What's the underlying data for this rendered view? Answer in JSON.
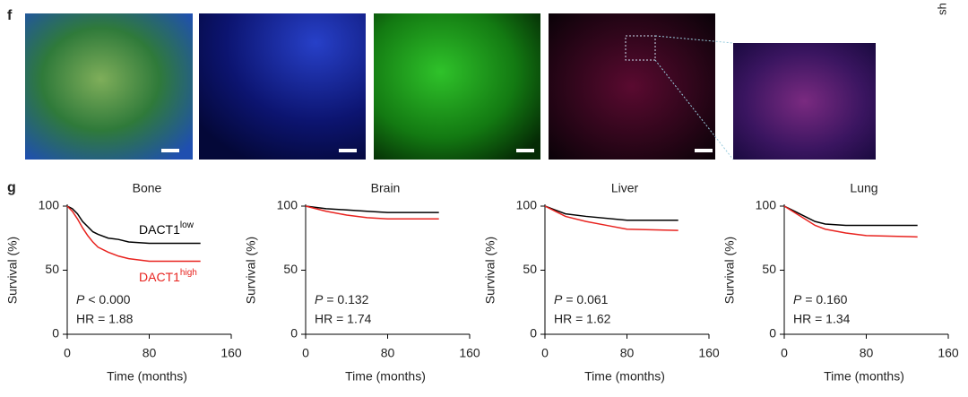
{
  "panel_labels": {
    "f": "f",
    "g": "g"
  },
  "corner_text": "sh",
  "chart_data": [
    {
      "type": "line",
      "title": "Bone",
      "xlabel": "Time (months)",
      "ylabel": "Survival (%)",
      "xlim": [
        0,
        160
      ],
      "ylim": [
        0,
        100
      ],
      "xticks": [
        0,
        80,
        160
      ],
      "yticks": [
        0,
        50,
        100
      ],
      "legend": true,
      "p_value": {
        "symbol": "P",
        "text": "< 0.000"
      },
      "hr": "HR = 1.88",
      "series": [
        {
          "name": "DACT1",
          "superscript": "low",
          "color": "#000000",
          "x": [
            0,
            5,
            10,
            15,
            20,
            25,
            30,
            40,
            50,
            60,
            80,
            130
          ],
          "values": [
            100,
            98,
            94,
            88,
            84,
            80,
            78,
            75,
            74,
            72,
            71,
            71
          ]
        },
        {
          "name": "DACT1",
          "superscript": "high",
          "color": "#e8231f",
          "x": [
            0,
            5,
            10,
            15,
            20,
            25,
            30,
            40,
            50,
            60,
            80,
            130
          ],
          "values": [
            100,
            96,
            90,
            83,
            77,
            72,
            68,
            64,
            61,
            59,
            57,
            57
          ]
        }
      ]
    },
    {
      "type": "line",
      "title": "Brain",
      "xlabel": "Time (months)",
      "ylabel": "Survival (%)",
      "xlim": [
        0,
        160
      ],
      "ylim": [
        0,
        100
      ],
      "xticks": [
        0,
        80,
        160
      ],
      "yticks": [
        0,
        50,
        100
      ],
      "legend": false,
      "p_value": {
        "symbol": "P",
        "text": "= 0.132"
      },
      "hr": "HR = 1.74",
      "series": [
        {
          "color": "#000000",
          "x": [
            0,
            20,
            40,
            60,
            80,
            130
          ],
          "values": [
            100,
            98,
            97,
            96,
            95,
            95
          ]
        },
        {
          "color": "#e8231f",
          "x": [
            0,
            20,
            40,
            60,
            80,
            130
          ],
          "values": [
            100,
            96,
            93,
            91,
            90,
            90
          ]
        }
      ]
    },
    {
      "type": "line",
      "title": "Liver",
      "xlabel": "Time (months)",
      "ylabel": "Survival (%)",
      "xlim": [
        0,
        160
      ],
      "ylim": [
        0,
        100
      ],
      "xticks": [
        0,
        80,
        160
      ],
      "yticks": [
        0,
        50,
        100
      ],
      "legend": false,
      "p_value": {
        "symbol": "P",
        "text": "= 0.061"
      },
      "hr": "HR = 1.62",
      "series": [
        {
          "color": "#000000",
          "x": [
            0,
            10,
            20,
            40,
            80,
            130
          ],
          "values": [
            100,
            97,
            94,
            92,
            89,
            89
          ]
        },
        {
          "color": "#e8231f",
          "x": [
            0,
            10,
            20,
            40,
            60,
            80,
            130
          ],
          "values": [
            100,
            96,
            92,
            88,
            85,
            82,
            81
          ]
        }
      ]
    },
    {
      "type": "line",
      "title": "Lung",
      "xlabel": "Time (months)",
      "ylabel": "Survival (%)",
      "xlim": [
        0,
        160
      ],
      "ylim": [
        0,
        100
      ],
      "xticks": [
        0,
        80,
        160
      ],
      "yticks": [
        0,
        50,
        100
      ],
      "legend": false,
      "p_value": {
        "symbol": "P",
        "text": "= 0.160"
      },
      "hr": "HR = 1.34",
      "series": [
        {
          "color": "#000000",
          "x": [
            0,
            10,
            20,
            30,
            40,
            60,
            130
          ],
          "values": [
            100,
            96,
            92,
            88,
            86,
            85,
            85
          ]
        },
        {
          "color": "#e8231f",
          "x": [
            0,
            10,
            20,
            30,
            40,
            60,
            80,
            130
          ],
          "values": [
            100,
            95,
            90,
            85,
            82,
            79,
            77,
            76
          ]
        }
      ]
    }
  ]
}
